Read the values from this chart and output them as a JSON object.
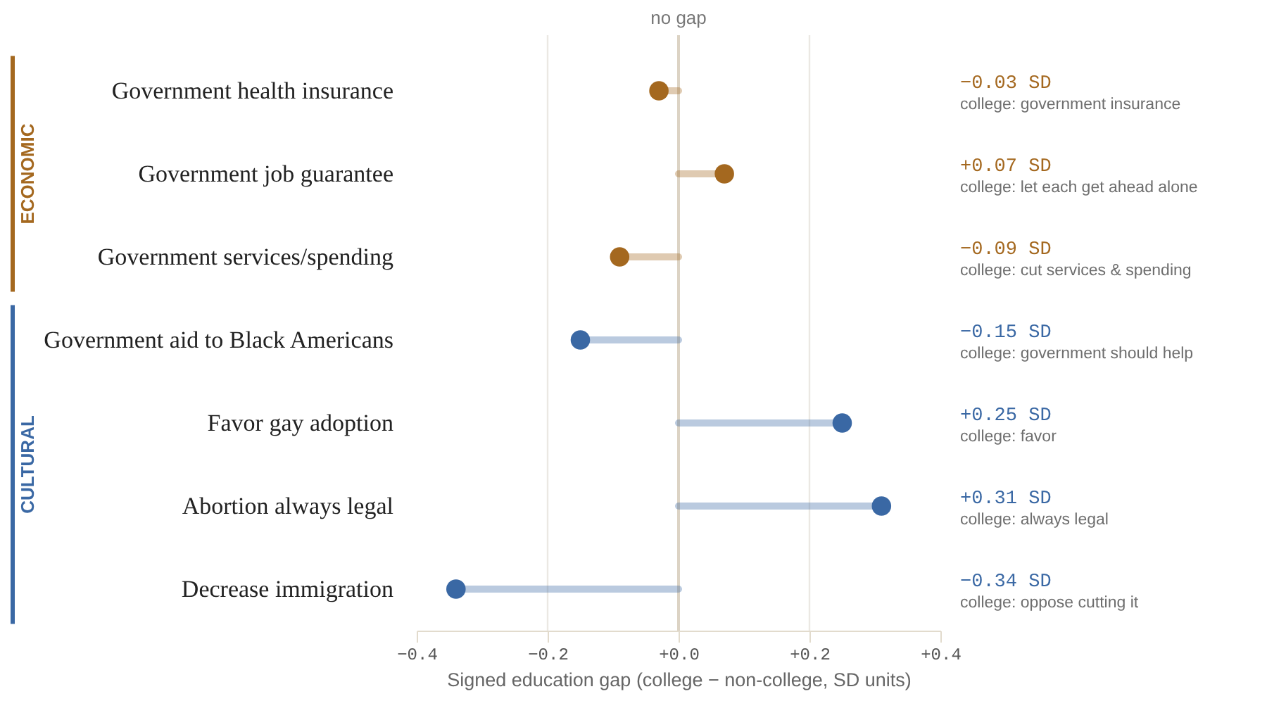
{
  "chart_data": {
    "type": "lollipop",
    "orientation": "horizontal",
    "categories": [
      "Government health insurance",
      "Government job guarantee",
      "Government services/spending",
      "Government aid to Black Americans",
      "Favor gay adoption",
      "Abortion always legal",
      "Decrease immigration"
    ],
    "series": [
      {
        "name": "ECONOMIC",
        "color": "#a4681f",
        "x": [
          "Government health insurance",
          "Government job guarantee",
          "Government services/spending"
        ],
        "values": [
          -0.03,
          0.07,
          -0.09
        ]
      },
      {
        "name": "CULTURAL",
        "color": "#3a68a4",
        "x": [
          "Government aid to Black Americans",
          "Favor gay adoption",
          "Abortion always legal",
          "Decrease immigration"
        ],
        "values": [
          -0.15,
          0.25,
          0.31,
          -0.34
        ]
      }
    ],
    "xlabel": "Signed education gap (college − non-college, SD units)",
    "xlim": [
      -0.4,
      0.4
    ],
    "xticks": [
      {
        "value": -0.4,
        "label": "−0.4"
      },
      {
        "value": -0.2,
        "label": "−0.2"
      },
      {
        "value": 0,
        "label": "+0.0"
      },
      {
        "value": 0.2,
        "label": "+0.2"
      },
      {
        "value": 0.4,
        "label": "+0.4"
      }
    ],
    "grid": "x",
    "marker": "circle",
    "ref_lines": [
      {
        "axis": "x",
        "value": 0,
        "label": "no gap",
        "color": "#dcd3c4"
      }
    ],
    "annotations": [
      "−0.03 SD",
      "college: government insurance",
      "+0.07 SD",
      "college: let each get ahead alone",
      "−0.09 SD",
      "college: cut services & spending",
      "−0.15 SD",
      "college: government should help",
      "+0.25 SD",
      "college: favor",
      "+0.31 SD",
      "college: always legal",
      "−0.34 SD",
      "college: oppose cutting it"
    ]
  }
}
